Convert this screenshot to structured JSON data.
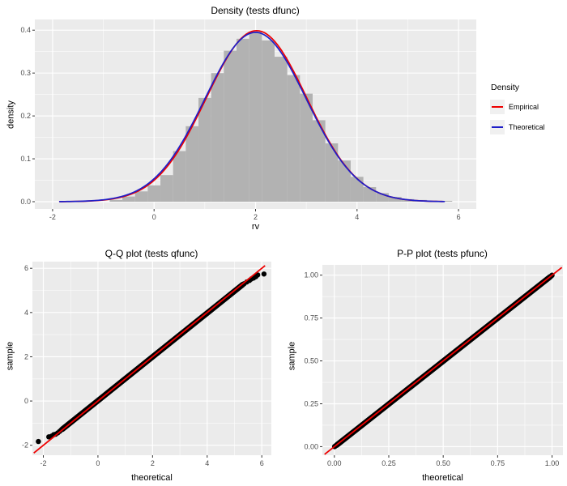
{
  "colors": {
    "background": "#ffffff",
    "panel_bg": "#ebebeb",
    "grid_major": "#ffffff",
    "grid_minor": "#ffffff",
    "tick_mark": "#333333",
    "tick_text": "#4d4d4d",
    "bar_fill": "#b2b2b2",
    "point_black": "#000000",
    "empirical_red": "#ee0000",
    "theoretical_blue": "#1e1ec8"
  },
  "chart_data": [
    {
      "id": "density",
      "type": "histogram",
      "title": "Density (tests dfunc)",
      "xlabel": "rv",
      "ylabel": "density",
      "xlim": [
        -2.35,
        6.35
      ],
      "ylim": [
        -0.017,
        0.425
      ],
      "xticks": [
        -2,
        0,
        2,
        4,
        6
      ],
      "xtick_labels": [
        "-2",
        "0",
        "2",
        "4",
        "6"
      ],
      "yticks": [
        0,
        0.1,
        0.2,
        0.3,
        0.4
      ],
      "ytick_labels": [
        "0.0",
        "0.1",
        "0.2",
        "0.3",
        "0.4"
      ],
      "xminor": [
        -1,
        1,
        3,
        5
      ],
      "yminor": [
        0.05,
        0.15,
        0.25,
        0.35
      ],
      "grid": true,
      "bins": {
        "width": 0.25,
        "centers": [
          -0.75,
          -0.5,
          -0.25,
          0,
          0.25,
          0.5,
          0.75,
          1,
          1.25,
          1.5,
          1.75,
          2,
          2.25,
          2.5,
          2.75,
          3,
          3.25,
          3.5,
          3.75,
          4,
          4.25,
          4.5,
          4.75,
          5,
          5.25,
          5.5,
          5.75
        ],
        "densities": [
          0.004,
          0.012,
          0.024,
          0.038,
          0.062,
          0.118,
          0.176,
          0.242,
          0.3,
          0.352,
          0.38,
          0.397,
          0.376,
          0.338,
          0.295,
          0.252,
          0.19,
          0.136,
          0.096,
          0.058,
          0.034,
          0.02,
          0.011,
          0.006,
          0.004,
          0.002,
          0.002
        ]
      },
      "curves": [
        {
          "name": "Empirical",
          "color": "#ee0000",
          "mean": 2.02,
          "sd": 0.99,
          "scale": 0.99,
          "x_from": -1.86,
          "x_to": 5.7
        },
        {
          "name": "Theoretical",
          "color": "#1e1ec8",
          "mean": 2.0,
          "sd": 1.0,
          "scale": 0.99,
          "x_from": -1.86,
          "x_to": 5.72
        }
      ],
      "legend": {
        "title": "Density",
        "entries": [
          {
            "label": "Empirical",
            "color": "#ee0000"
          },
          {
            "label": "Theoretical",
            "color": "#1e1ec8"
          }
        ],
        "position": "right"
      }
    },
    {
      "id": "qq",
      "type": "scatter",
      "title": "Q-Q plot (tests qfunc)",
      "xlabel": "theoretical",
      "ylabel": "sample",
      "xlim": [
        -2.4,
        6.35
      ],
      "ylim": [
        -2.45,
        6.3
      ],
      "xticks": [
        -2,
        0,
        2,
        4,
        6
      ],
      "xtick_labels": [
        "-2",
        "0",
        "2",
        "4",
        "6"
      ],
      "yticks": [
        -2,
        0,
        2,
        4,
        6
      ],
      "ytick_labels": [
        "-2",
        "0",
        "2",
        "4",
        "6"
      ],
      "xminor": [
        -1,
        1,
        3,
        5
      ],
      "yminor": [
        -1,
        1,
        3,
        5
      ],
      "grid": true,
      "ref_line": {
        "color": "#ee0000",
        "from": [
          -2.35,
          -2.35
        ],
        "to": [
          6.12,
          6.12
        ]
      },
      "band": {
        "from": [
          -1.3,
          -1.27
        ],
        "to": [
          5.3,
          5.26
        ],
        "color": "#000000"
      },
      "points": [
        [
          -2.18,
          -1.83
        ],
        [
          -1.8,
          -1.62
        ],
        [
          -1.7,
          -1.59
        ],
        [
          -1.62,
          -1.52
        ],
        [
          -1.55,
          -1.5
        ],
        [
          -1.47,
          -1.44
        ],
        [
          -1.4,
          -1.37
        ],
        [
          -1.34,
          -1.3
        ],
        [
          5.35,
          5.3
        ],
        [
          5.45,
          5.38
        ],
        [
          5.55,
          5.45
        ],
        [
          5.62,
          5.52
        ],
        [
          5.7,
          5.56
        ],
        [
          5.78,
          5.62
        ],
        [
          5.85,
          5.7
        ],
        [
          6.08,
          5.74
        ]
      ]
    },
    {
      "id": "pp",
      "type": "scatter",
      "title": "P-P plot (tests pfunc)",
      "xlabel": "theoretical",
      "ylabel": "sample",
      "xlim": [
        -0.055,
        1.05
      ],
      "ylim": [
        -0.05,
        1.06
      ],
      "xticks": [
        0,
        0.25,
        0.5,
        0.75,
        1
      ],
      "xtick_labels": [
        "0.00",
        "0.25",
        "0.50",
        "0.75",
        "1.00"
      ],
      "yticks": [
        0,
        0.25,
        0.5,
        0.75,
        1
      ],
      "ytick_labels": [
        "0.00",
        "0.25",
        "0.50",
        "0.75",
        "1.00"
      ],
      "xminor": [
        0.125,
        0.375,
        0.625,
        0.875
      ],
      "yminor": [
        0.125,
        0.375,
        0.625,
        0.875
      ],
      "grid": true,
      "ref_line": {
        "color": "#ee0000",
        "from": [
          -0.045,
          -0.045
        ],
        "to": [
          1.045,
          1.045
        ]
      },
      "band": {
        "from": [
          0.012,
          0.01
        ],
        "to": [
          0.99,
          0.989
        ],
        "color": "#000000"
      },
      "points": [
        [
          0.001,
          0.0
        ],
        [
          0.003,
          0.002
        ],
        [
          0.006,
          0.005
        ],
        [
          0.009,
          0.008
        ],
        [
          0.993,
          0.992
        ],
        [
          0.996,
          0.995
        ],
        [
          0.999,
          0.998
        ],
        [
          1.0,
          1.0
        ]
      ]
    }
  ]
}
